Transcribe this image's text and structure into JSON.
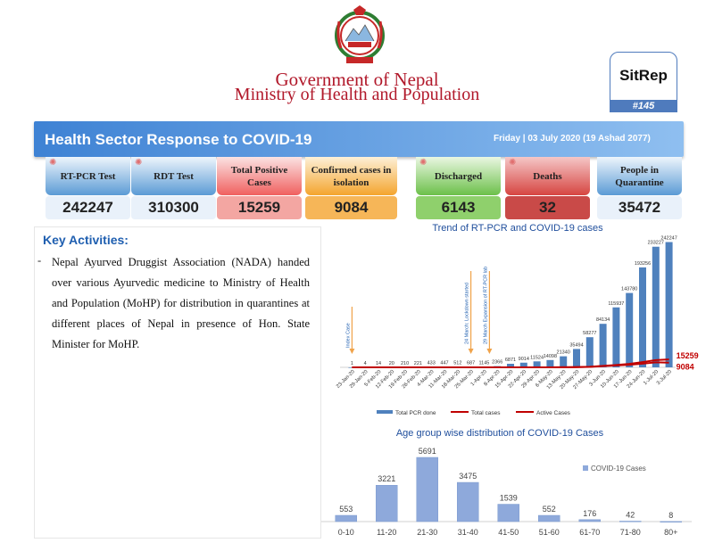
{
  "header": {
    "title": "Government of Nepal",
    "subtitle": "Ministry of Health and Population",
    "sitrep_label": "SitRep",
    "sitrep_number": "#145"
  },
  "banner": {
    "title": "Health Sector Response to COVID-19",
    "date": "Friday | 03 July 2020 (19 Ashad 2077)"
  },
  "stats": [
    {
      "label": "RT-PCR Test",
      "value": "242247",
      "color": "#5b9bd5"
    },
    {
      "label": "RDT Test",
      "value": "310300",
      "color": "#5b9bd5"
    },
    {
      "label": "Total Positive Cases",
      "value": "15259",
      "color": "#f0605f"
    },
    {
      "label": "Confirmed cases in isolation",
      "value": "9084",
      "color": "#f4a52e"
    },
    {
      "label": "Discharged",
      "value": "6143",
      "color": "#6cc04a"
    },
    {
      "label": "Deaths",
      "value": "32",
      "color": "#c0392b"
    },
    {
      "label": "People in Quarantine",
      "value": "35472",
      "color": "#5b9bd5"
    }
  ],
  "key_activities": {
    "title": "Key Activities:",
    "bullet": "-",
    "text": "Nepal Ayurved Druggist Association (NADA) handed over various Ayurvedic medicine to Ministry of Health and Population (MoHP) for distribution in quarantines at different places of Nepal in presence of Hon. State Minister for MoHP."
  },
  "chart_data": [
    {
      "type": "bar",
      "title": "Trend of RT-PCR and COVID-19 cases",
      "categories": [
        "23-Jan-20",
        "29-Jan-20",
        "5-Feb-20",
        "12-Feb-20",
        "19-Feb-20",
        "26-Feb-20",
        "4-Mar-20",
        "11-Mar-20",
        "18-Mar-20",
        "25-Mar-20",
        "1-Apr-20",
        "8-Apr-20",
        "15-Apr-20",
        "22-Apr-20",
        "29-Apr-20",
        "6-May-20",
        "13-May-20",
        "20-May-20",
        "27-May-20",
        "3-Jun-20",
        "10-Jun-20",
        "17-Jun-20",
        "24-Jun-20",
        "1-Jul-20",
        "3-Jul-20"
      ],
      "series": [
        {
          "name": "Total PCR done",
          "kind": "bar",
          "color": "#4f81bd",
          "values": [
            1,
            4,
            14,
            20,
            210,
            221,
            433,
            447,
            512,
            687,
            1145,
            2366,
            6871,
            9014,
            11524,
            14098,
            21340,
            35494,
            58277,
            84134,
            115937,
            143780,
            193256,
            233227,
            242247
          ],
          "labels": [
            "1",
            "4",
            "14",
            "20",
            "210",
            "221",
            "433",
            "447",
            "512",
            "687",
            "1145",
            "2366",
            "6871",
            "9014",
            "11524",
            "14098",
            "21340",
            "35494",
            "58277",
            "84134",
            "115937",
            "143780",
            "193256",
            "233227",
            "242247"
          ]
        },
        {
          "name": "Total  cases",
          "kind": "line",
          "color": "#c00000",
          "values": [
            1,
            1,
            1,
            1,
            1,
            1,
            1,
            1,
            1,
            2,
            5,
            9,
            16,
            31,
            57,
            83,
            249,
            457,
            1042,
            2912,
            4614,
            6591,
            10099,
            14046,
            15259
          ],
          "end_label": "15259"
        },
        {
          "name": "Active Cases",
          "kind": "line",
          "color": "#c00000",
          "values": [
            1,
            1,
            1,
            1,
            1,
            1,
            1,
            1,
            1,
            2,
            5,
            8,
            12,
            20,
            40,
            60,
            210,
            370,
            850,
            2300,
            3600,
            5000,
            7000,
            9700,
            9084
          ],
          "end_label": "9084"
        }
      ],
      "annotations": [
        {
          "text": "Index Case",
          "at": "23-Jan-20"
        },
        {
          "text": "24 March: Lockdown started",
          "at": "25-Mar-20"
        },
        {
          "text": "29 March Expansion of RT-PCR lab",
          "at": "1-Apr-20"
        }
      ],
      "legend_position": "bottom"
    },
    {
      "type": "bar",
      "title": "Age group wise distribution of COVID-19 Cases",
      "categories": [
        "0-10",
        "11-20",
        "21-30",
        "31-40",
        "41-50",
        "51-60",
        "61-70",
        "71-80",
        "80+"
      ],
      "series": [
        {
          "name": "COVID-19 Cases",
          "color": "#8ea9db",
          "values": [
            553,
            3221,
            5691,
            3475,
            1539,
            552,
            176,
            42,
            8
          ]
        }
      ],
      "legend_position": "right"
    }
  ]
}
